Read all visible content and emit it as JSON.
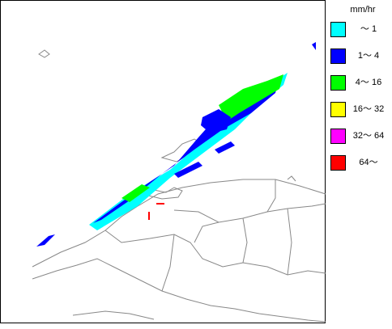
{
  "legend": {
    "unit": "mm/hr",
    "items": [
      {
        "label": "～ 1",
        "color": "#00ffff"
      },
      {
        "label": "1～ 4",
        "color": "#0000ff"
      },
      {
        "label": "4～ 16",
        "color": "#00ff00"
      },
      {
        "label": "16～ 32",
        "color": "#ffff00"
      },
      {
        "label": "32～ 64",
        "color": "#ff00ff"
      },
      {
        "label": "64～",
        "color": "#ff0000"
      }
    ]
  }
}
